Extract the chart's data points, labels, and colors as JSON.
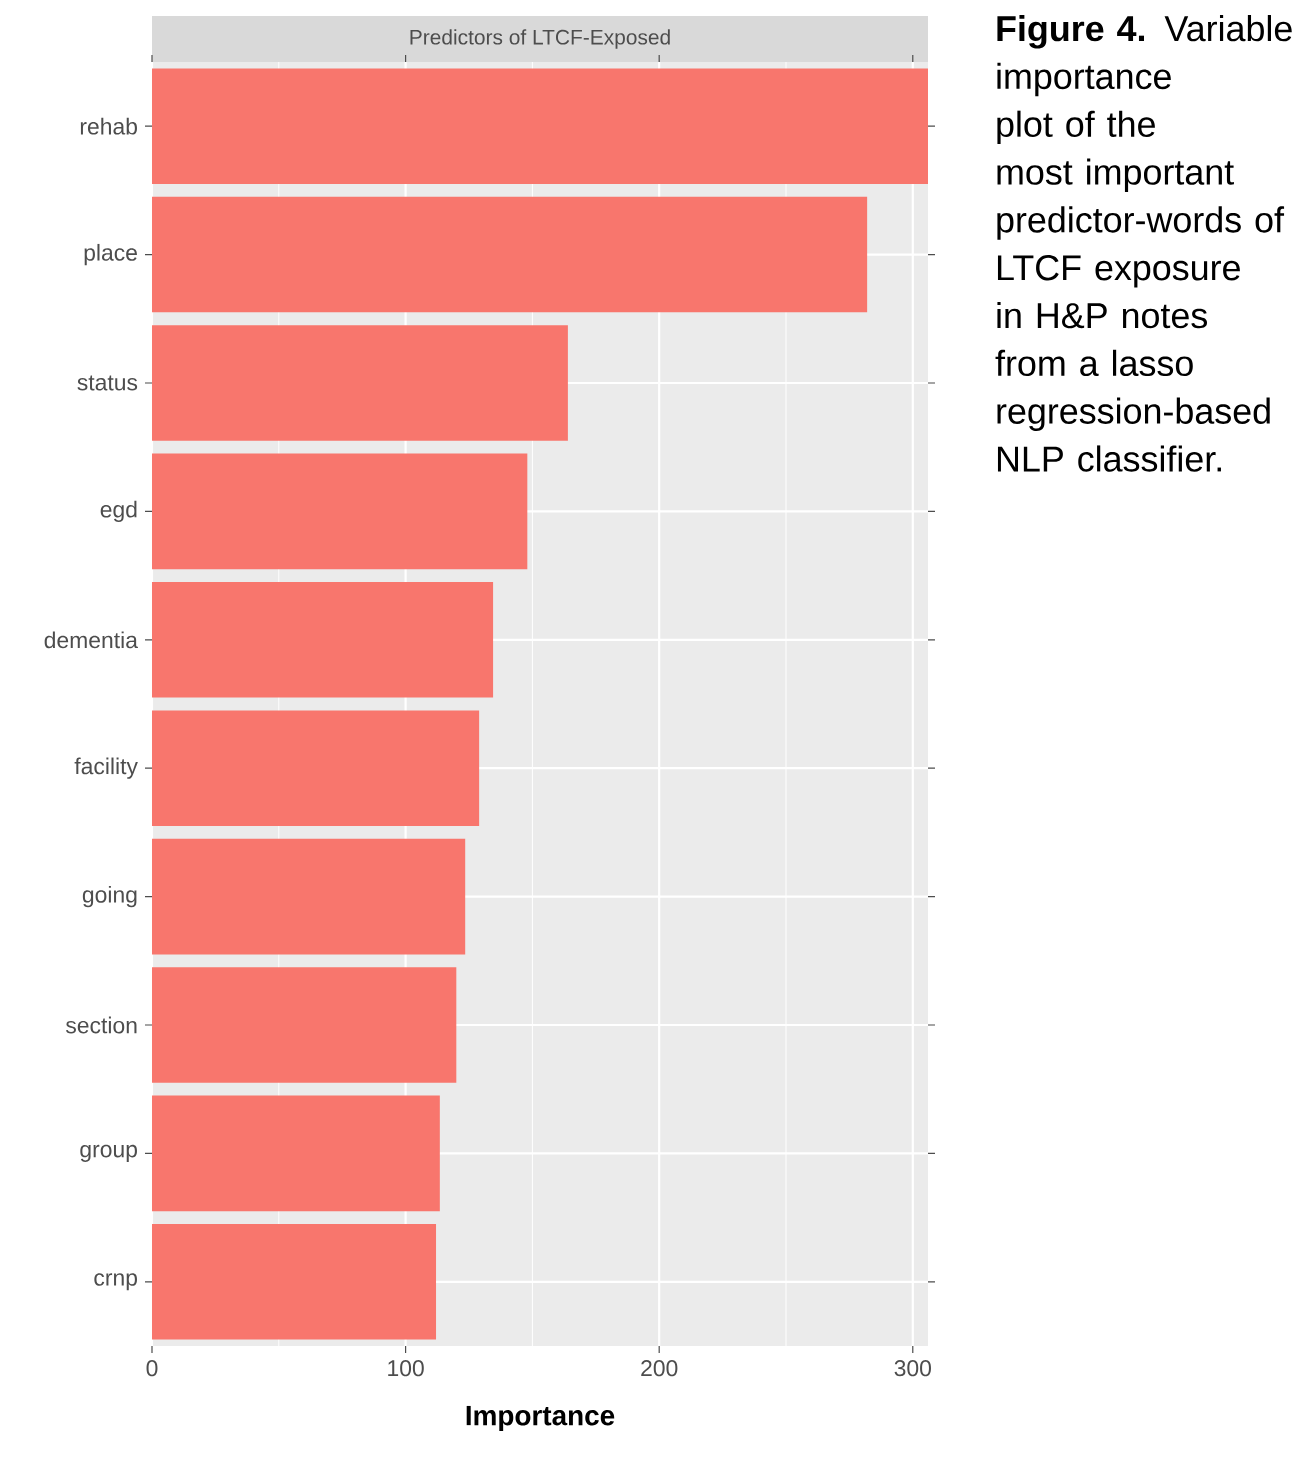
{
  "chart_data": {
    "type": "bar",
    "orientation": "horizontal",
    "title": "Predictors of LTCF-Exposed",
    "xlabel": "Importance",
    "categories": [
      "rehab",
      "place",
      "status",
      "egd",
      "dementia",
      "facility",
      "going",
      "section",
      "group",
      "crnp"
    ],
    "values": [
      306,
      282,
      164,
      148,
      134.5,
      129,
      123.5,
      120,
      113.5,
      112
    ],
    "color": "#f8766d",
    "xlim": [
      0,
      306
    ],
    "xticks": [
      0,
      100,
      200,
      300
    ],
    "grid": true,
    "annotations": [
      "**Figure 4.** Variable importance plot of the most important predictor-words of LTCF exposure in H&P notes from a lasso regression-based NLP classifier."
    ]
  }
}
